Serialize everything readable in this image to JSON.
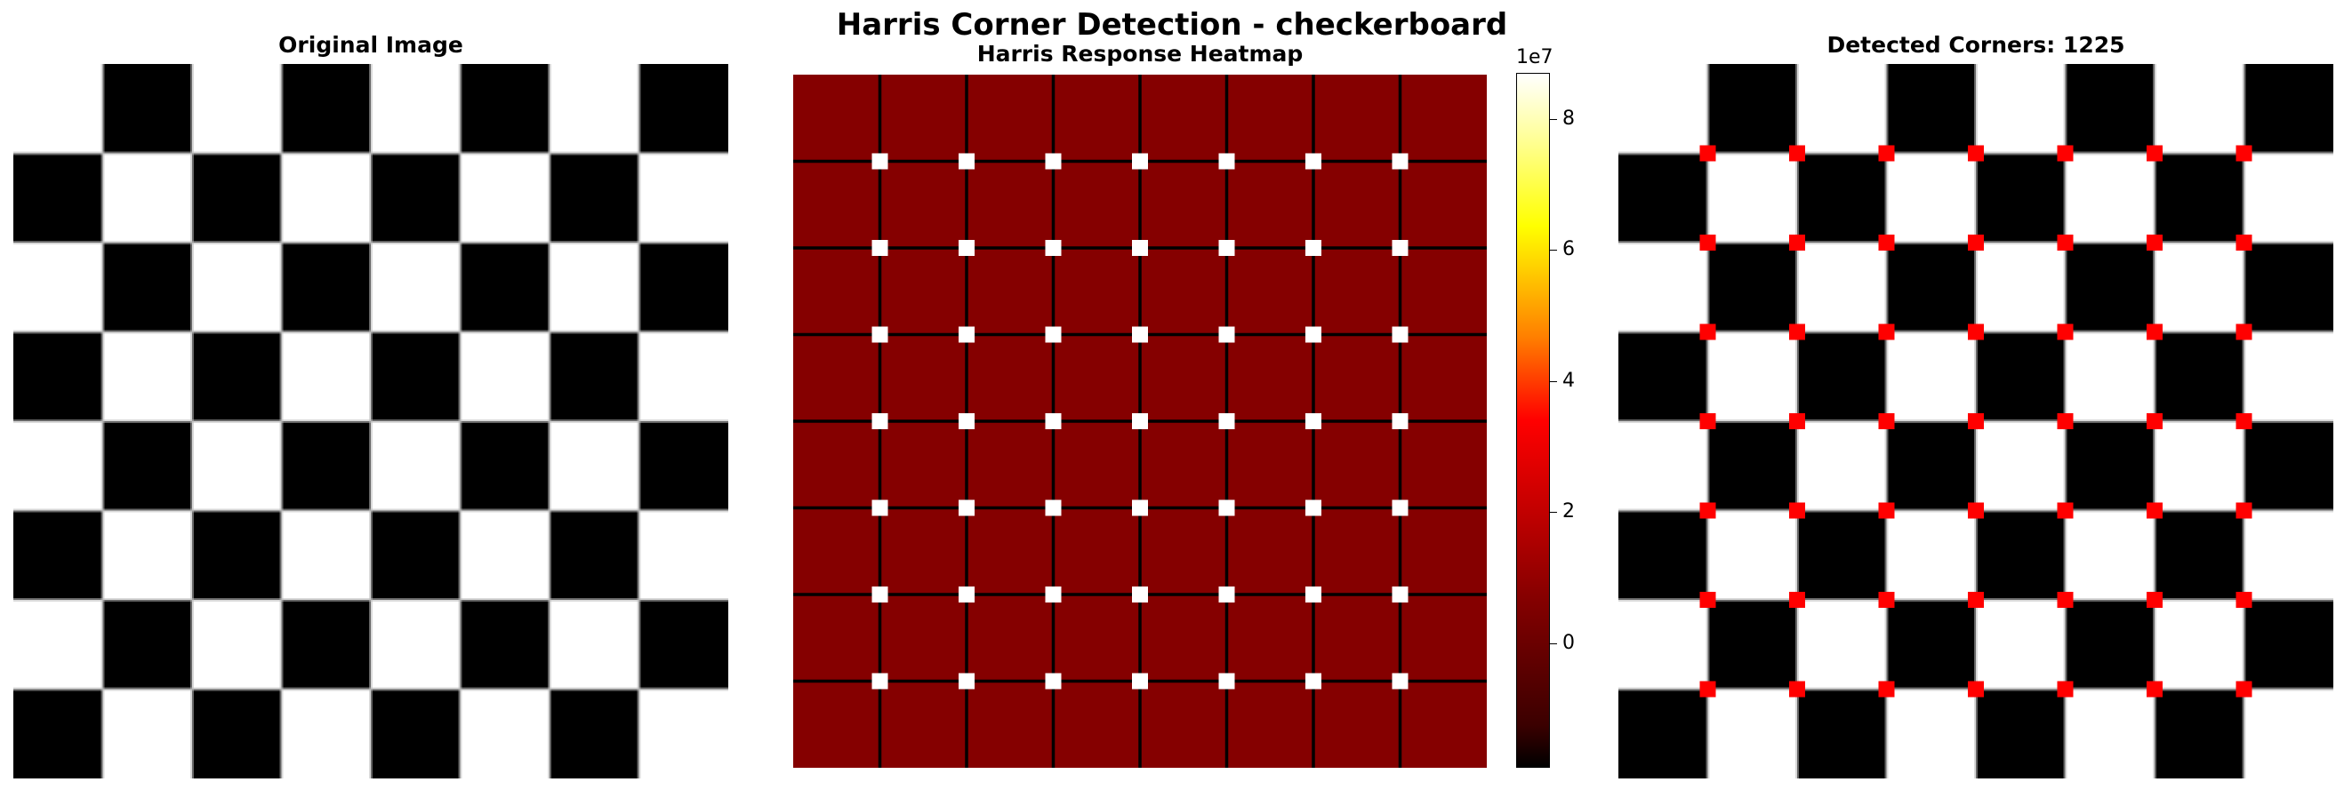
{
  "figure": {
    "suptitle": "Harris Corner Detection - checkerboard"
  },
  "chart_data": [
    {
      "type": "heatmap",
      "title": "Original Image",
      "grid_size": 8,
      "pattern": "checkerboard",
      "top_left": "white",
      "colors": {
        "dark": "#000000",
        "light": "#ffffff",
        "edge": "#bbbbbb"
      },
      "axes": "off"
    },
    {
      "type": "heatmap",
      "title": "Harris Response Heatmap",
      "colormap": "hot",
      "background_value": 0,
      "colorbar": {
        "ticks": [
          0,
          2,
          4,
          6,
          8
        ],
        "tick_labels": [
          "0",
          "2",
          "4",
          "6",
          "8"
        ],
        "exponent_label": "1e7",
        "vmin": -1.9,
        "vmax": 8.7
      },
      "edge_lines_at_fractions": [
        0.125,
        0.25,
        0.375,
        0.5,
        0.625,
        0.75,
        0.875
      ],
      "peaks": {
        "rows": 7,
        "cols": 7,
        "value": 8.7,
        "color": "#ffffff"
      },
      "axes": "off"
    },
    {
      "type": "heatmap",
      "title": "Detected Corners: 1225",
      "grid_size": 8,
      "pattern": "checkerboard",
      "top_left": "white",
      "marker_color": "#ff0000",
      "markers": {
        "rows": 7,
        "cols": 7
      },
      "axes": "off"
    }
  ]
}
